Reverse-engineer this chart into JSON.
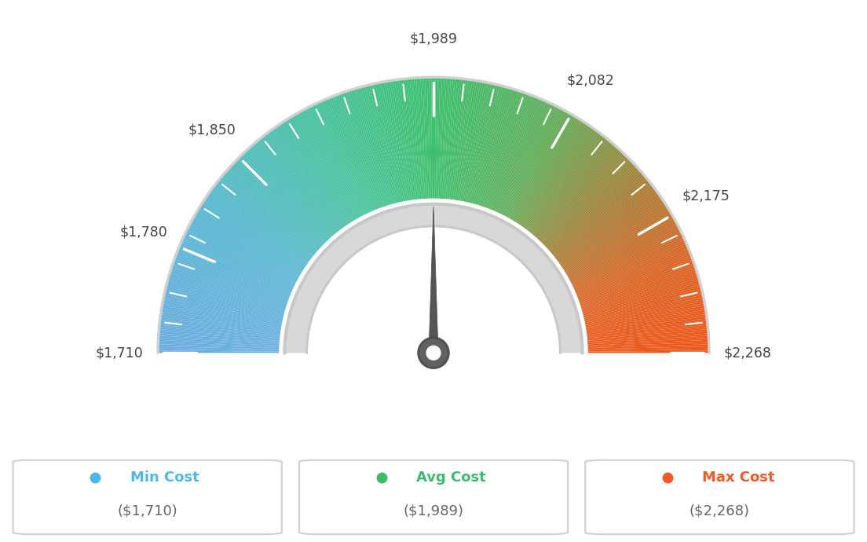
{
  "min_val": 1710,
  "avg_val": 1989,
  "max_val": 2268,
  "labels": [
    "$1,710",
    "$1,780",
    "$1,850",
    "$1,989",
    "$2,082",
    "$2,175",
    "$2,268"
  ],
  "label_values": [
    1710,
    1780,
    1850,
    1989,
    2082,
    2175,
    2268
  ],
  "legend": [
    {
      "label": "Min Cost",
      "value": "($1,710)",
      "color": "#4db8e8"
    },
    {
      "label": "Avg Cost",
      "value": "($1,989)",
      "color": "#3dba6e"
    },
    {
      "label": "Max Cost",
      "value": "($2,268)",
      "color": "#f05a28"
    }
  ],
  "needle_value": 1989,
  "background": "#ffffff",
  "color_stops": [
    [
      0.0,
      [
        0.42,
        0.68,
        0.88
      ]
    ],
    [
      0.18,
      [
        0.35,
        0.72,
        0.82
      ]
    ],
    [
      0.35,
      [
        0.28,
        0.76,
        0.62
      ]
    ],
    [
      0.5,
      [
        0.24,
        0.75,
        0.43
      ]
    ],
    [
      0.65,
      [
        0.38,
        0.68,
        0.35
      ]
    ],
    [
      0.78,
      [
        0.65,
        0.5,
        0.22
      ]
    ],
    [
      0.88,
      [
        0.85,
        0.4,
        0.15
      ]
    ],
    [
      1.0,
      [
        0.93,
        0.34,
        0.1
      ]
    ]
  ]
}
